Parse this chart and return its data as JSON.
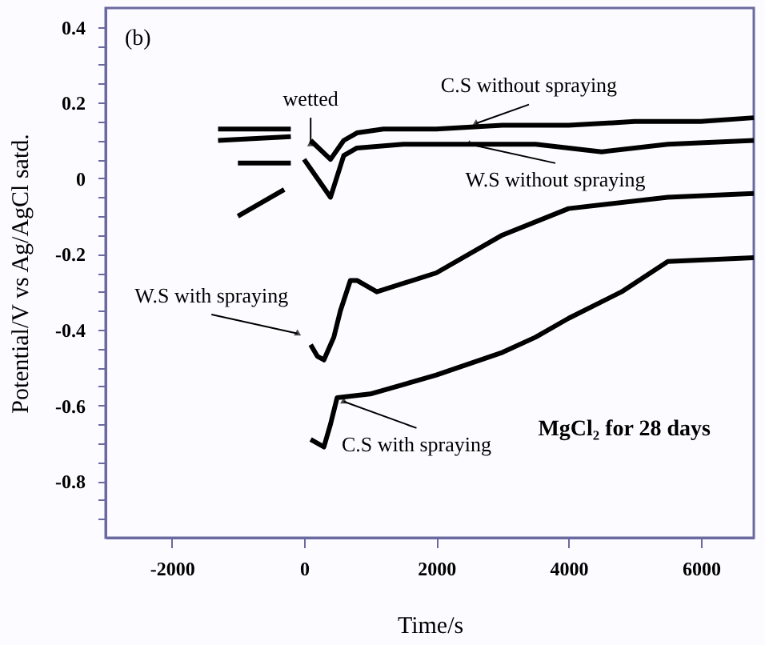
{
  "chart_data": {
    "type": "line",
    "xlabel": "Time/s",
    "ylabel": "Potential/V vs Ag/AgCl satd.",
    "xlim": [
      -3000,
      6800
    ],
    "ylim": [
      -0.95,
      0.45
    ],
    "xticks": [
      -2000,
      0,
      2000,
      4000,
      6000
    ],
    "yticks": [
      {
        "value": -0.9,
        "label": null
      },
      {
        "value": -0.85,
        "label": null
      },
      -0.8,
      {
        "value": -0.75,
        "label": null
      },
      {
        "value": -0.7,
        "label": null
      },
      {
        "value": -0.65,
        "label": null
      },
      -0.6,
      {
        "value": -0.55,
        "label": null
      },
      {
        "value": -0.5,
        "label": null
      },
      {
        "value": -0.45,
        "label": null
      },
      -0.4,
      {
        "value": -0.35,
        "label": null
      },
      {
        "value": -0.3,
        "label": null
      },
      {
        "value": -0.25,
        "label": null
      },
      -0.2,
      {
        "value": -0.15,
        "label": null
      },
      {
        "value": -0.1,
        "label": null
      },
      {
        "value": -0.05,
        "label": null
      },
      0,
      {
        "value": 0.05,
        "label": null
      },
      {
        "value": 0.1,
        "label": null
      },
      {
        "value": 0.15,
        "label": null
      },
      0.2,
      {
        "value": 0.25,
        "label": null
      },
      {
        "value": 0.3,
        "label": null
      },
      {
        "value": 0.35,
        "label": null
      },
      0.4
    ],
    "grid": false,
    "marker": "none",
    "line_style": "solid",
    "series": [
      {
        "color": "#000000",
        "x": [
          -1300,
          -200,
          -100,
          100,
          400,
          600,
          800,
          1200,
          2000,
          3000,
          4000,
          5000,
          5500,
          6000,
          6800
        ],
        "values": [
          0.13,
          0.13,
          null,
          0.1,
          0.05,
          0.1,
          0.12,
          0.13,
          0.13,
          0.14,
          0.14,
          0.15,
          0.15,
          0.15,
          0.16
        ]
      },
      {
        "color": "#000000",
        "x": [
          -1300,
          -200,
          -100,
          0,
          200,
          400,
          600,
          800,
          1500,
          2500,
          3500,
          4000,
          4500,
          5500,
          6800
        ],
        "values": [
          0.1,
          0.11,
          null,
          0.05,
          0.0,
          -0.05,
          0.06,
          0.08,
          0.09,
          0.09,
          0.09,
          0.08,
          0.07,
          0.09,
          0.1
        ]
      },
      {
        "color": "#000000",
        "x": [
          -1000,
          -200,
          -100,
          100,
          200,
          300,
          450,
          550,
          700,
          800,
          1100,
          2000,
          3000,
          4000,
          5500,
          6800
        ],
        "values": [
          0.04,
          0.04,
          null,
          -0.44,
          -0.47,
          -0.48,
          -0.42,
          -0.35,
          -0.27,
          -0.27,
          -0.3,
          -0.25,
          -0.15,
          -0.08,
          -0.05,
          -0.04
        ]
      },
      {
        "color": "#000000",
        "x": [
          -1000,
          -300,
          -200,
          100,
          300,
          400,
          500,
          1000,
          2000,
          3000,
          3500,
          4000,
          4800,
          5500,
          6800
        ],
        "values": [
          -0.1,
          -0.03,
          null,
          -0.69,
          -0.71,
          -0.65,
          -0.58,
          -0.57,
          -0.52,
          -0.46,
          -0.42,
          -0.37,
          -0.3,
          -0.22,
          -0.21
        ]
      }
    ],
    "annotations": [
      "(b)",
      {
        "text": "wetted",
        "x": 100,
        "y": 0.09
      },
      {
        "text": "C.S without spraying",
        "x": 2600,
        "y": 0.145
      },
      {
        "text": "W.S without spraying",
        "x": 2500,
        "y": 0.09
      },
      {
        "text": "W.S with spraying",
        "x": -100,
        "y": -0.41
      },
      {
        "text": "C.S with spraying",
        "x": 600,
        "y": -0.59
      },
      "MgCl₂ for 28 days"
    ]
  }
}
